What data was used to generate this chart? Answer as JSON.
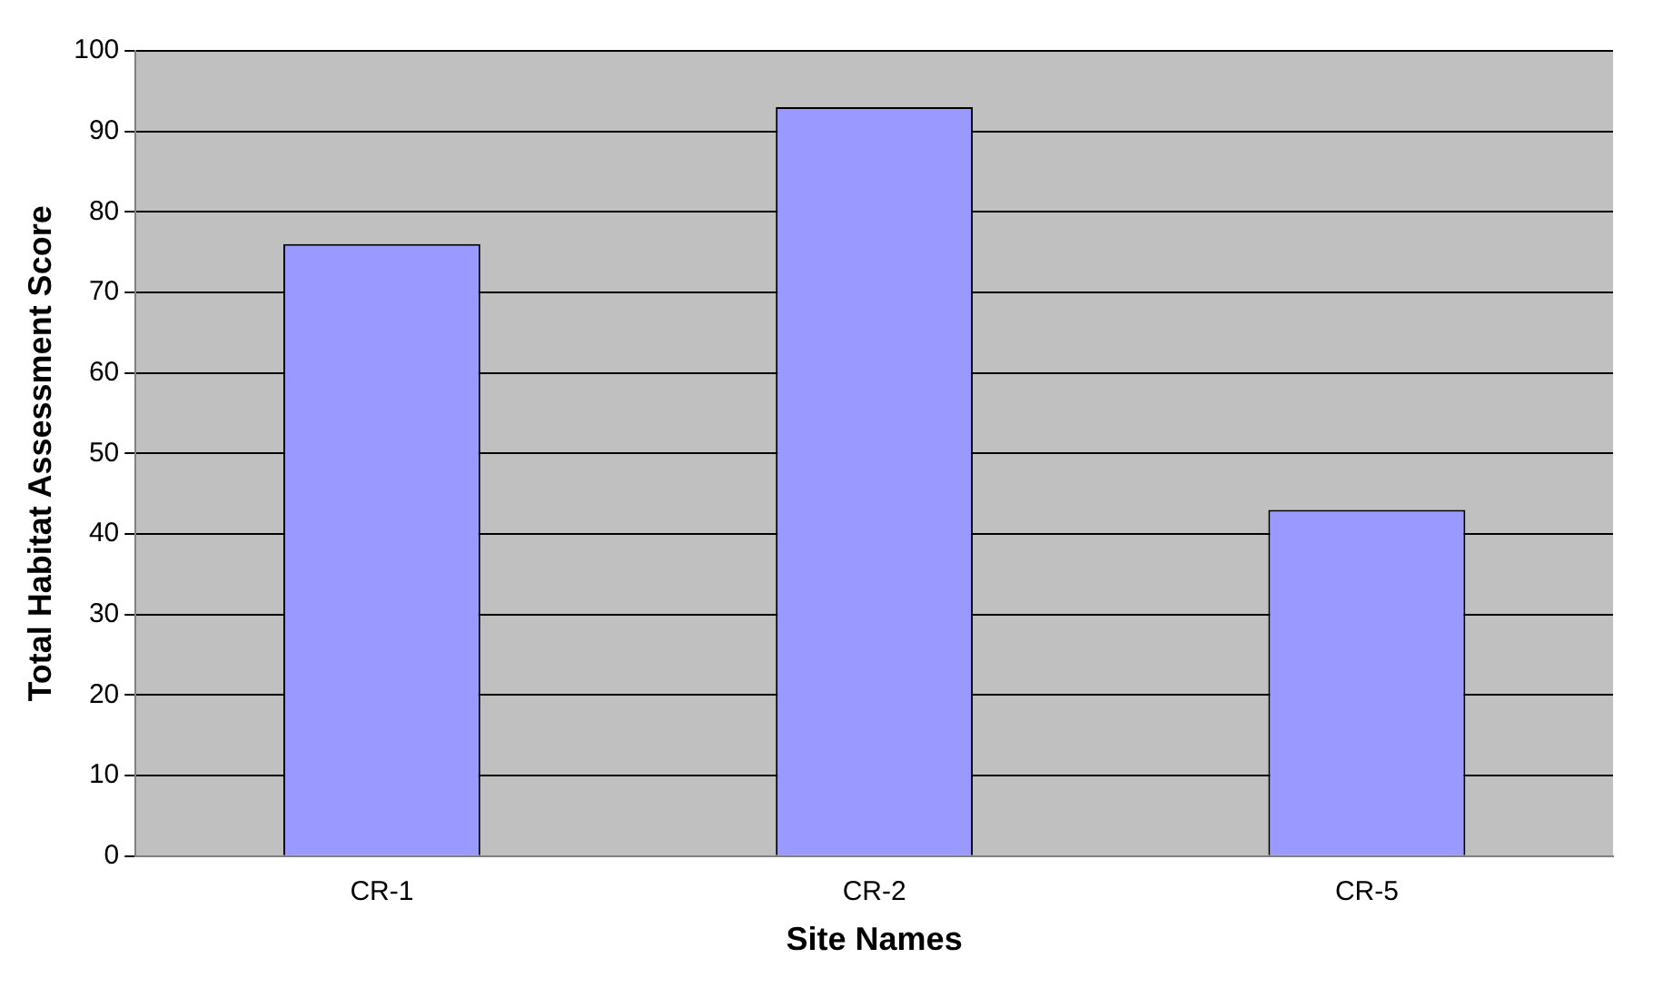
{
  "chart_data": {
    "type": "bar",
    "xlabel": "Site Names",
    "ylabel": "Total Habitat Assessment Score",
    "categories": [
      "CR-1",
      "CR-2",
      "CR-5"
    ],
    "values": [
      76,
      93,
      43
    ],
    "color": "#9999ff",
    "ylim": [
      0,
      100
    ],
    "yticks": [
      0,
      10,
      20,
      30,
      40,
      50,
      60,
      70,
      80,
      90,
      100
    ],
    "grid": "y"
  }
}
